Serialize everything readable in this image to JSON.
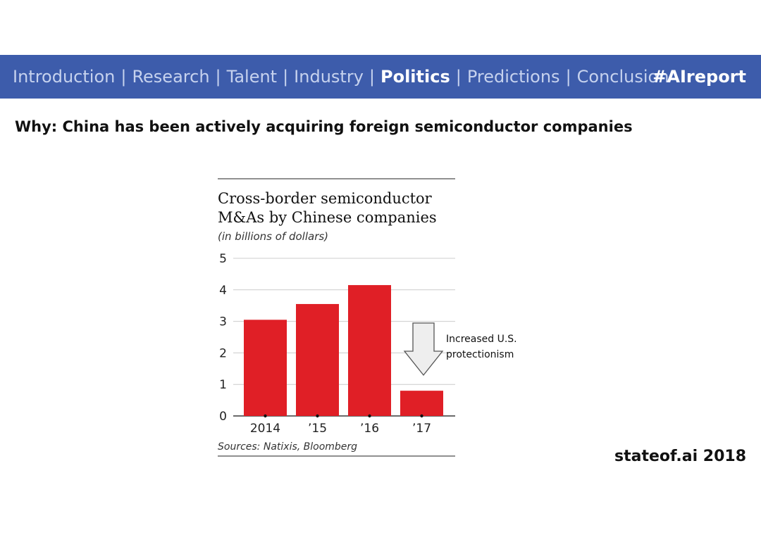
{
  "nav": {
    "items": [
      {
        "label": "Introduction",
        "active": false
      },
      {
        "label": "Research",
        "active": false
      },
      {
        "label": "Talent",
        "active": false
      },
      {
        "label": "Industry",
        "active": false
      },
      {
        "label": "Politics",
        "active": true
      },
      {
        "label": "Predictions",
        "active": false
      },
      {
        "label": "Conclusion",
        "active": false
      }
    ],
    "separator": "|",
    "hashtag": "#AIreport"
  },
  "headline": "Why: China has been actively acquiring foreign semiconductor companies",
  "footer": {
    "brand": "stateof.ai 2018"
  },
  "colors": {
    "nav_bg": "#3d5cab",
    "bar": "#e01f26",
    "nav_text": "#c6d2ee"
  },
  "chart_data": {
    "type": "bar",
    "title_lines": [
      "Cross-border semiconductor",
      "M&As by Chinese companies"
    ],
    "subtitle": "(in billions of dollars)",
    "categories": [
      "2014",
      "’15",
      "’16",
      "’17"
    ],
    "values": [
      3.05,
      3.55,
      4.15,
      0.8
    ],
    "ylim": [
      0,
      5
    ],
    "yticks": [
      0,
      1,
      2,
      3,
      4,
      5
    ],
    "grid": true,
    "annotation": {
      "lines": [
        "Increased U.S.",
        "protectionism"
      ],
      "icon": "down-arrow-icon"
    },
    "source": "Sources: Natixis, Bloomberg"
  }
}
